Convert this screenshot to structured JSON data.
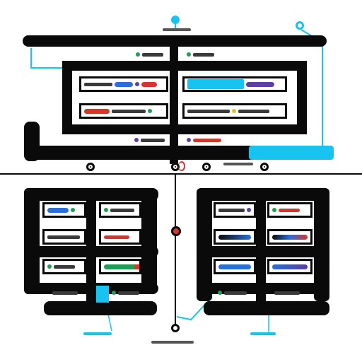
{
  "diagram": {
    "top_block": {
      "left_column_rows": 4,
      "right_column_rows": 4
    },
    "bottom_left_block": {
      "rows": 4
    },
    "bottom_right_block": {
      "rows": 4
    }
  },
  "colors": {
    "structure": "#0a0a0a",
    "connector": "#17c3f0",
    "accent_red": "#d9342b",
    "accent_green": "#1f9d55",
    "accent_purple": "#5b3fa3",
    "accent_blue": "#2b6fd9"
  }
}
